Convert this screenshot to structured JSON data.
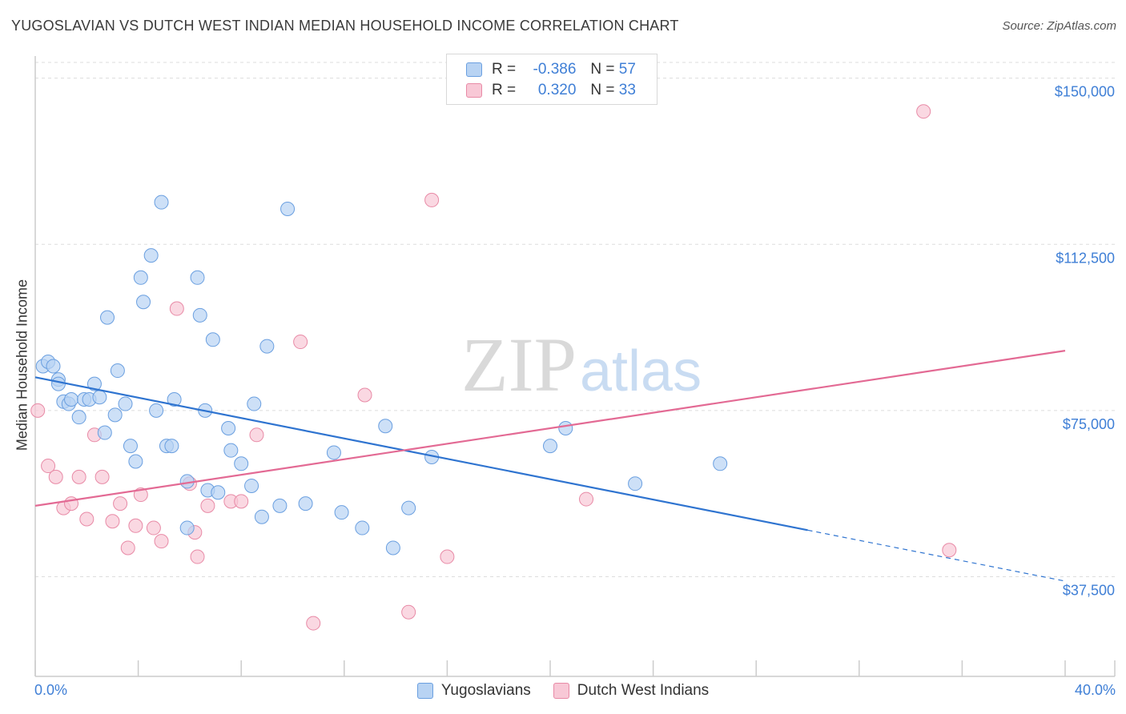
{
  "header": {
    "title": "YUGOSLAVIAN VS DUTCH WEST INDIAN MEDIAN HOUSEHOLD INCOME CORRELATION CHART",
    "source": "Source: ZipAtlas.com"
  },
  "legend": {
    "rows": [
      {
        "r_label": "R =",
        "r_value": "-0.386",
        "n_label": "N =",
        "n_value": "57"
      },
      {
        "r_label": "R =",
        "r_value": "0.320",
        "n_label": "N =",
        "n_value": "33"
      }
    ],
    "bottom": [
      "Yugoslavians",
      "Dutch West Indians"
    ]
  },
  "colors": {
    "blue_fill": "#b8d3f3",
    "blue_stroke": "#6a9fe0",
    "blue_line": "#2f74d0",
    "pink_fill": "#f8c8d6",
    "pink_stroke": "#e88aa6",
    "pink_line": "#e36a94",
    "tick_text": "#3f7fd6",
    "grid": "#dddddd"
  },
  "watermark": {
    "part1": "ZIP",
    "part2": "atlas"
  },
  "chart_data": {
    "type": "scatter",
    "title": "YUGOSLAVIAN VS DUTCH WEST INDIAN MEDIAN HOUSEHOLD INCOME CORRELATION CHART",
    "xlabel": "",
    "ylabel": "Median Household Income",
    "xlim": [
      0,
      40
    ],
    "ylim": [
      15000,
      155000
    ],
    "x_tick_labels": [
      "0.0%",
      "40.0%"
    ],
    "y_ticks": [
      37500,
      75000,
      112500,
      150000
    ],
    "y_tick_labels": [
      "$37,500",
      "$75,000",
      "$112,500",
      "$150,000"
    ],
    "series": [
      {
        "name": "Yugoslavians",
        "r": -0.386,
        "n": 57,
        "trend": {
          "x0": 0,
          "y0": 82500,
          "x1": 30,
          "y1": 48000,
          "dashed_to_x": 40,
          "dashed_to_y": 36500
        },
        "points": [
          [
            0.3,
            85000
          ],
          [
            0.5,
            86000
          ],
          [
            0.7,
            85000
          ],
          [
            0.9,
            82000
          ],
          [
            0.9,
            81000
          ],
          [
            1.1,
            77000
          ],
          [
            1.3,
            76500
          ],
          [
            1.4,
            77500
          ],
          [
            1.7,
            73500
          ],
          [
            1.9,
            77500
          ],
          [
            2.1,
            77500
          ],
          [
            2.3,
            81000
          ],
          [
            2.5,
            78000
          ],
          [
            2.7,
            70000
          ],
          [
            2.8,
            96000
          ],
          [
            3.1,
            74000
          ],
          [
            3.2,
            84000
          ],
          [
            3.5,
            76500
          ],
          [
            3.7,
            67000
          ],
          [
            3.9,
            63500
          ],
          [
            4.1,
            105000
          ],
          [
            4.2,
            99500
          ],
          [
            4.5,
            110000
          ],
          [
            4.7,
            75000
          ],
          [
            4.9,
            122000
          ],
          [
            5.1,
            67000
          ],
          [
            5.3,
            67000
          ],
          [
            5.4,
            77500
          ],
          [
            5.9,
            59000
          ],
          [
            5.9,
            48500
          ],
          [
            6.3,
            105000
          ],
          [
            6.4,
            96500
          ],
          [
            6.6,
            75000
          ],
          [
            6.7,
            57000
          ],
          [
            6.9,
            91000
          ],
          [
            7.1,
            56500
          ],
          [
            7.5,
            71000
          ],
          [
            7.6,
            66000
          ],
          [
            8.0,
            63000
          ],
          [
            8.4,
            58000
          ],
          [
            8.5,
            76500
          ],
          [
            8.8,
            51000
          ],
          [
            9.0,
            89500
          ],
          [
            9.5,
            53500
          ],
          [
            9.8,
            120500
          ],
          [
            10.5,
            54000
          ],
          [
            11.6,
            65500
          ],
          [
            11.9,
            52000
          ],
          [
            12.7,
            48500
          ],
          [
            13.6,
            71500
          ],
          [
            13.9,
            44000
          ],
          [
            14.5,
            53000
          ],
          [
            15.4,
            64500
          ],
          [
            20.0,
            67000
          ],
          [
            20.6,
            71000
          ],
          [
            23.3,
            58500
          ],
          [
            26.6,
            63000
          ]
        ]
      },
      {
        "name": "Dutch West Indians",
        "r": 0.32,
        "n": 33,
        "trend": {
          "x0": 0,
          "y0": 53500,
          "x1": 40,
          "y1": 88500
        },
        "points": [
          [
            0.1,
            75000
          ],
          [
            0.5,
            62500
          ],
          [
            0.8,
            60000
          ],
          [
            1.1,
            53000
          ],
          [
            1.4,
            54000
          ],
          [
            1.7,
            60000
          ],
          [
            2.0,
            50500
          ],
          [
            2.3,
            69500
          ],
          [
            2.6,
            60000
          ],
          [
            3.0,
            50000
          ],
          [
            3.3,
            54000
          ],
          [
            3.6,
            44000
          ],
          [
            3.9,
            49000
          ],
          [
            4.1,
            56000
          ],
          [
            4.6,
            48500
          ],
          [
            4.9,
            45500
          ],
          [
            5.5,
            98000
          ],
          [
            6.0,
            58500
          ],
          [
            6.2,
            47500
          ],
          [
            6.3,
            42000
          ],
          [
            6.7,
            53500
          ],
          [
            7.6,
            54500
          ],
          [
            8.0,
            54500
          ],
          [
            8.6,
            69500
          ],
          [
            10.3,
            90500
          ],
          [
            10.8,
            27000
          ],
          [
            12.8,
            78500
          ],
          [
            14.5,
            29500
          ],
          [
            15.4,
            122500
          ],
          [
            16.0,
            42000
          ],
          [
            21.4,
            55000
          ],
          [
            34.5,
            142500
          ],
          [
            35.5,
            43500
          ]
        ]
      }
    ]
  }
}
